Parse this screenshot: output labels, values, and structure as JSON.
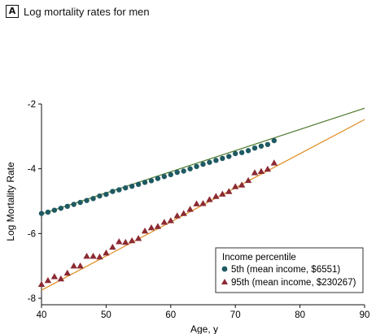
{
  "panel": {
    "letter": "A",
    "title": "Log mortality rates for men"
  },
  "chart_data": {
    "type": "scatter",
    "title": "",
    "xlabel": "Age, y",
    "ylabel": "Log Mortality Rate",
    "xlim": [
      40,
      90
    ],
    "ylim": [
      -8.2,
      -2
    ],
    "xticks": [
      40,
      50,
      60,
      70,
      80,
      90
    ],
    "yticks": [
      -2,
      -4,
      -6,
      -8
    ],
    "grid": false,
    "legend": {
      "title": "Income percentile",
      "placement": "bottom-right",
      "entries": [
        "5th (mean income, $6551)",
        "95th (mean income, $230267)"
      ]
    },
    "series": [
      {
        "name": "5th (mean income, $6551)",
        "marker": "circle",
        "color": "#1f5a63",
        "line_color": "#4a7a2a",
        "x": [
          40,
          41,
          42,
          43,
          44,
          45,
          46,
          47,
          48,
          49,
          50,
          51,
          52,
          53,
          54,
          55,
          56,
          57,
          58,
          59,
          60,
          61,
          62,
          63,
          64,
          65,
          66,
          67,
          68,
          69,
          70,
          71,
          72,
          73,
          74,
          75,
          76
        ],
        "y": [
          -5.38,
          -5.34,
          -5.28,
          -5.22,
          -5.16,
          -5.1,
          -5.04,
          -4.98,
          -4.92,
          -4.84,
          -4.79,
          -4.7,
          -4.65,
          -4.59,
          -4.54,
          -4.48,
          -4.42,
          -4.37,
          -4.3,
          -4.24,
          -4.18,
          -4.11,
          -4.07,
          -4.0,
          -3.93,
          -3.86,
          -3.8,
          -3.74,
          -3.68,
          -3.62,
          -3.53,
          -3.5,
          -3.44,
          -3.36,
          -3.3,
          -3.25,
          -3.13
        ],
        "fit": {
          "x": [
            40,
            90
          ],
          "y": [
            -5.4,
            -2.13
          ]
        }
      },
      {
        "name": "95th (mean income, $230267)",
        "marker": "triangle",
        "color": "#8b2a33",
        "line_color": "#e08a1e",
        "x": [
          40,
          41,
          42,
          43,
          44,
          45,
          46,
          47,
          48,
          49,
          50,
          51,
          52,
          53,
          54,
          55,
          56,
          57,
          58,
          59,
          60,
          61,
          62,
          63,
          64,
          65,
          66,
          67,
          68,
          69,
          70,
          71,
          72,
          73,
          74,
          75,
          76
        ],
        "y": [
          -7.57,
          -7.45,
          -7.33,
          -7.4,
          -7.22,
          -7.0,
          -7.0,
          -6.7,
          -6.7,
          -6.72,
          -6.6,
          -6.42,
          -6.25,
          -6.27,
          -6.22,
          -6.15,
          -5.92,
          -5.82,
          -5.78,
          -5.65,
          -5.6,
          -5.45,
          -5.38,
          -5.25,
          -5.08,
          -5.07,
          -4.95,
          -4.85,
          -4.78,
          -4.7,
          -4.55,
          -4.5,
          -4.36,
          -4.12,
          -4.08,
          -4.01,
          -3.82
        ],
        "fit": {
          "x": [
            40,
            90
          ],
          "y": [
            -7.75,
            -2.48
          ]
        }
      }
    ]
  }
}
